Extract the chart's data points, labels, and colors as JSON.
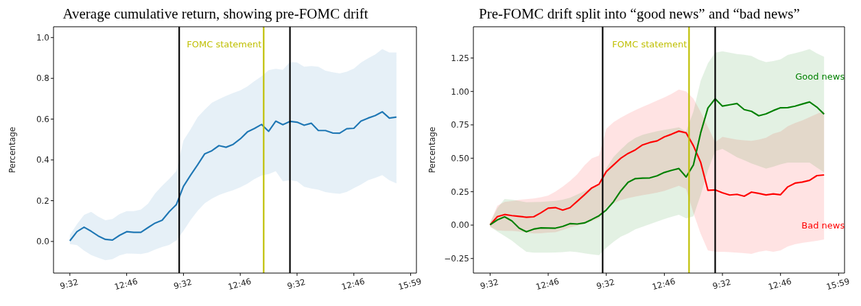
{
  "chart_data": [
    {
      "type": "line",
      "title": "Average cumulative return, showing pre-FOMC drift",
      "ylabel": "Percentage",
      "categories": [
        "9:32",
        null,
        null,
        null,
        null,
        null,
        null,
        null,
        "12:46",
        null,
        null,
        null,
        null,
        null,
        null,
        null,
        "9:32",
        null,
        null,
        null,
        null,
        null,
        null,
        null,
        "12:46",
        null,
        null,
        null,
        null,
        null,
        null,
        null,
        "9:32",
        null,
        null,
        null,
        null,
        null,
        null,
        null,
        "12:46",
        null,
        null,
        null,
        null,
        null,
        null,
        null,
        "15:59"
      ],
      "ylim": [
        -0.155,
        1.053
      ],
      "yticks": [
        {
          "value": 0,
          "label": "0.0"
        },
        {
          "value": 0.2,
          "label": "0.2"
        },
        {
          "value": 0.4,
          "label": "0.4"
        },
        {
          "value": 0.6,
          "label": "0.6"
        },
        {
          "value": 0.8,
          "label": "0.8"
        },
        {
          "value": 1,
          "label": "1.0"
        }
      ],
      "series": [
        {
          "color": "#1f77b4",
          "values": [
            0.003,
            0.048,
            0.07,
            0.05,
            0.027,
            0.01,
            0.007,
            0.03,
            0.048,
            0.045,
            0.045,
            0.068,
            0.09,
            0.104,
            0.146,
            0.181,
            0.27,
            0.325,
            0.376,
            0.43,
            0.445,
            0.47,
            0.462,
            0.476,
            0.503,
            0.537,
            0.554,
            0.574,
            0.54,
            0.59,
            0.573,
            0.589,
            0.585,
            0.57,
            0.58,
            0.544,
            0.544,
            0.532,
            0.531,
            0.553,
            0.555,
            0.59,
            0.605,
            0.617,
            0.636,
            0.605,
            0.61,
            null,
            null
          ],
          "upper": [
            0.032,
            0.085,
            0.13,
            0.145,
            0.122,
            0.104,
            0.11,
            0.134,
            0.149,
            0.149,
            0.156,
            0.185,
            0.235,
            0.273,
            0.307,
            0.345,
            0.495,
            0.55,
            0.61,
            0.647,
            0.68,
            0.698,
            0.714,
            0.728,
            0.741,
            0.76,
            0.786,
            0.81,
            0.84,
            0.847,
            0.842,
            0.88,
            0.878,
            0.857,
            0.86,
            0.857,
            0.838,
            0.83,
            0.824,
            0.833,
            0.848,
            0.877,
            0.898,
            0.917,
            0.944,
            0.927,
            0.927,
            null,
            null
          ],
          "lower": [
            -0.013,
            -0.018,
            -0.045,
            -0.067,
            -0.08,
            -0.092,
            -0.087,
            -0.068,
            -0.059,
            -0.06,
            -0.062,
            -0.055,
            -0.04,
            -0.027,
            -0.017,
            0.005,
            0.052,
            0.105,
            0.15,
            0.187,
            0.21,
            0.228,
            0.24,
            0.251,
            0.266,
            0.283,
            0.306,
            0.324,
            0.33,
            0.345,
            0.295,
            0.3,
            0.295,
            0.268,
            0.26,
            0.254,
            0.242,
            0.237,
            0.234,
            0.243,
            0.261,
            0.279,
            0.3,
            0.312,
            0.325,
            0.3,
            0.285,
            null,
            null
          ]
        }
      ],
      "annotations": [
        "FOMC statement"
      ]
    },
    {
      "type": "line",
      "title": "Pre-FOMC drift split into “good news” and “bad news”",
      "ylabel": "Percentage",
      "categories": [
        "9:32",
        null,
        null,
        null,
        null,
        null,
        null,
        null,
        "12:46",
        null,
        null,
        null,
        null,
        null,
        null,
        null,
        "9:32",
        null,
        null,
        null,
        null,
        null,
        null,
        null,
        "12:46",
        null,
        null,
        null,
        null,
        null,
        null,
        null,
        "9:32",
        null,
        null,
        null,
        null,
        null,
        null,
        null,
        "12:46",
        null,
        null,
        null,
        null,
        null,
        null,
        null,
        "15:59"
      ],
      "ylim": [
        -0.359,
        1.484
      ],
      "yticks": [
        {
          "value": -0.25,
          "label": "−0.25"
        },
        {
          "value": 0,
          "label": "0.00"
        },
        {
          "value": 0.25,
          "label": "0.25"
        },
        {
          "value": 0.5,
          "label": "0.50"
        },
        {
          "value": 0.75,
          "label": "0.75"
        },
        {
          "value": 1,
          "label": "1.00"
        },
        {
          "value": 1.25,
          "label": "1.25"
        }
      ],
      "series": [
        {
          "name": "Bad news",
          "color": "#ff0000",
          "values": [
            0.002,
            0.063,
            0.079,
            0.071,
            0.065,
            0.059,
            0.062,
            0.092,
            0.127,
            0.131,
            0.112,
            0.13,
            0.178,
            0.227,
            0.278,
            0.306,
            0.4,
            0.45,
            0.5,
            0.536,
            0.563,
            0.6,
            0.618,
            0.63,
            0.66,
            0.68,
            0.703,
            0.69,
            0.594,
            0.47,
            0.26,
            0.263,
            0.242,
            0.225,
            0.23,
            0.216,
            0.247,
            0.237,
            0.226,
            0.233,
            0.227,
            0.286,
            0.314,
            0.322,
            0.335,
            0.37,
            0.375,
            null,
            null
          ],
          "upper": [
            0.02,
            0.146,
            0.174,
            0.18,
            0.189,
            0.194,
            0.199,
            0.208,
            0.221,
            0.25,
            0.288,
            0.33,
            0.38,
            0.447,
            0.5,
            0.52,
            0.72,
            0.77,
            0.804,
            0.833,
            0.86,
            0.885,
            0.908,
            0.932,
            0.955,
            0.982,
            1.014,
            1.0,
            0.946,
            0.847,
            0.735,
            0.62,
            0.66,
            0.65,
            0.64,
            0.635,
            0.63,
            0.639,
            0.653,
            0.685,
            0.7,
            0.74,
            0.764,
            0.783,
            0.808,
            0.832,
            0.855,
            null,
            null
          ],
          "lower": [
            -0.012,
            -0.039,
            -0.043,
            -0.043,
            -0.049,
            -0.056,
            -0.062,
            -0.061,
            -0.056,
            -0.053,
            -0.037,
            -0.018,
            -0.004,
            0.009,
            0.03,
            0.05,
            0.133,
            0.165,
            0.187,
            0.202,
            0.214,
            0.224,
            0.233,
            0.243,
            0.256,
            0.275,
            0.294,
            0.27,
            0.09,
            -0.065,
            -0.19,
            -0.2,
            -0.2,
            -0.203,
            -0.206,
            -0.21,
            -0.215,
            -0.2,
            -0.191,
            -0.2,
            -0.19,
            -0.16,
            -0.143,
            -0.133,
            -0.126,
            -0.118,
            -0.108,
            null,
            null
          ]
        },
        {
          "name": "Good news",
          "color": "#008000",
          "values": [
            0.002,
            0.039,
            0.062,
            0.031,
            -0.023,
            -0.05,
            -0.03,
            -0.021,
            -0.022,
            -0.023,
            -0.01,
            0.011,
            0.008,
            0.016,
            0.042,
            0.07,
            0.113,
            0.175,
            0.256,
            0.32,
            0.348,
            0.351,
            0.353,
            0.369,
            0.394,
            0.41,
            0.423,
            0.36,
            0.45,
            0.69,
            0.876,
            0.945,
            0.89,
            0.9,
            0.91,
            0.864,
            0.851,
            0.818,
            0.832,
            0.857,
            0.878,
            0.879,
            0.89,
            0.906,
            0.921,
            0.883,
            0.83,
            null,
            null
          ],
          "upper": [
            0.02,
            0.127,
            0.196,
            0.19,
            0.181,
            0.171,
            0.172,
            0.174,
            0.177,
            0.181,
            0.19,
            0.205,
            0.229,
            0.255,
            0.277,
            0.296,
            0.425,
            0.51,
            0.565,
            0.617,
            0.652,
            0.675,
            0.689,
            0.703,
            0.713,
            0.722,
            0.732,
            0.7,
            0.85,
            1.08,
            1.21,
            1.29,
            1.3,
            1.29,
            1.28,
            1.275,
            1.266,
            1.238,
            1.22,
            1.227,
            1.24,
            1.274,
            1.286,
            1.3,
            1.317,
            1.285,
            1.259,
            null,
            null
          ],
          "lower": [
            -0.012,
            -0.049,
            -0.082,
            -0.116,
            -0.16,
            -0.2,
            -0.206,
            -0.206,
            -0.206,
            -0.205,
            -0.202,
            -0.197,
            -0.202,
            -0.211,
            -0.219,
            -0.225,
            -0.17,
            -0.125,
            -0.087,
            -0.062,
            -0.032,
            -0.013,
            0.007,
            0.026,
            0.045,
            0.062,
            0.077,
            0.05,
            0.066,
            0.225,
            0.41,
            0.552,
            0.57,
            0.54,
            0.507,
            0.486,
            0.461,
            0.442,
            0.422,
            0.437,
            0.455,
            0.467,
            0.467,
            0.467,
            0.467,
            0.43,
            0.395,
            null,
            null
          ]
        }
      ],
      "annotations": [
        "FOMC statement"
      ]
    }
  ]
}
